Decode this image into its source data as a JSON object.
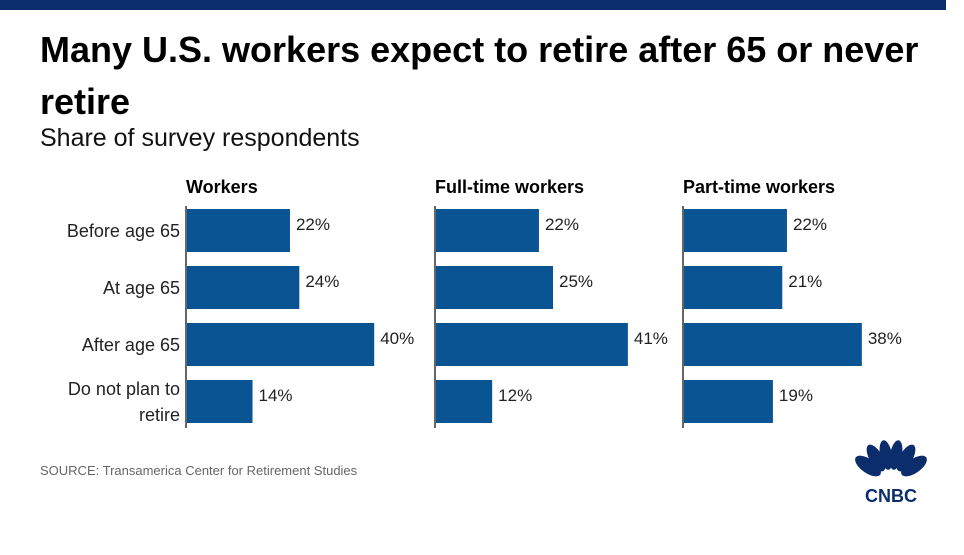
{
  "title": "Many U.S. workers expect to retire after 65 or never retire",
  "subtitle": "Share of survey respondents",
  "source": "SOURCE: Transamerica Center for Retirement Studies",
  "logo_text": "CNBC",
  "colors": {
    "bar": "#0a5494",
    "topbar": "#0b2d6b",
    "axis": "#333333"
  },
  "chart_data": {
    "type": "bar",
    "orientation": "horizontal",
    "categories": [
      "Before age 65",
      "At age 65",
      "After age 65",
      "Do not plan to retire"
    ],
    "category_lines": [
      [
        "Before age 65"
      ],
      [
        "At age 65"
      ],
      [
        "After age 65"
      ],
      [
        "Do not plan to",
        "retire"
      ]
    ],
    "unit": "%",
    "xlim": [
      0,
      45
    ],
    "grid": false,
    "series": [
      {
        "name": "Workers",
        "values": [
          22,
          24,
          40,
          14
        ],
        "labels": [
          "22%",
          "24%",
          "40%",
          "14%"
        ]
      },
      {
        "name": "Full-time workers",
        "values": [
          22,
          25,
          41,
          12
        ],
        "labels": [
          "22%",
          "25%",
          "41%",
          "12%"
        ]
      },
      {
        "name": "Part-time workers",
        "values": [
          22,
          21,
          38,
          19
        ],
        "labels": [
          "22%",
          "21%",
          "38%",
          "19%"
        ]
      }
    ]
  }
}
